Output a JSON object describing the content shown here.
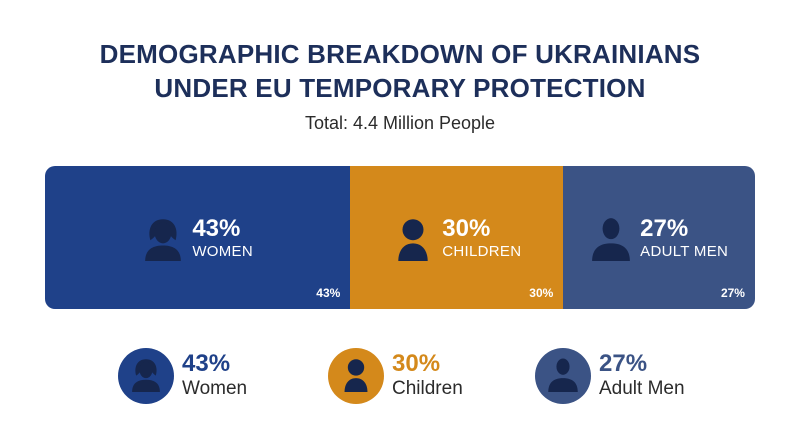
{
  "title_lines": [
    "DEMOGRAPHIC BREAKDOWN OF UKRAINIANS",
    "UNDER EU TEMPORARY PROTECTION"
  ],
  "subtitle": "Total: 4.4 Million People",
  "chart_data": {
    "type": "bar",
    "orientation": "horizontal-stacked",
    "title": "DEMOGRAPHIC BREAKDOWN OF UKRAINIANS UNDER EU TEMPORARY PROTECTION",
    "subtitle": "Total: 4.4 Million People",
    "unit": "%",
    "categories": [
      "WOMEN",
      "CHILDREN",
      "ADULT MEN"
    ],
    "values": [
      43,
      30,
      27
    ],
    "segments": [
      {
        "pct": "43%",
        "label": "WOMEN",
        "corner": "43%",
        "color": "#1f4189",
        "icon": "woman-icon"
      },
      {
        "pct": "30%",
        "label": "CHILDREN",
        "corner": "30%",
        "color": "#d4891b",
        "icon": "child-icon"
      },
      {
        "pct": "27%",
        "label": "ADULT MEN",
        "corner": "27%",
        "color": "#3b5385",
        "icon": "man-icon"
      }
    ]
  },
  "legend": [
    {
      "pct": "43%",
      "label": "Women",
      "color": "#1f4189",
      "icon": "woman-icon"
    },
    {
      "pct": "30%",
      "label": "Children",
      "color": "#d4891b",
      "icon": "child-icon"
    },
    {
      "pct": "27%",
      "label": "Adult Men",
      "color": "#3b5385",
      "icon": "man-icon"
    }
  ],
  "icon_shade": "#16264d"
}
